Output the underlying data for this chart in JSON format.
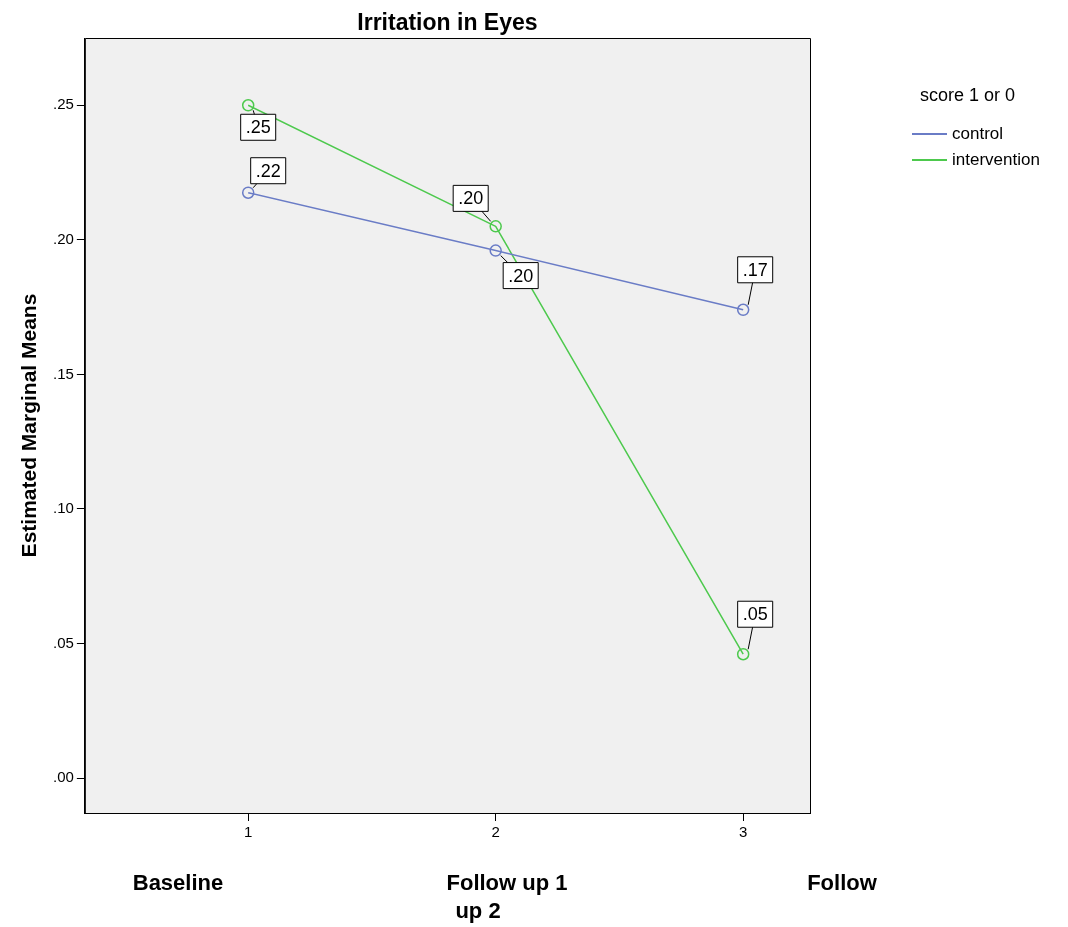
{
  "chart_data": {
    "type": "line",
    "title": "Irritation in Eyes",
    "ylabel": "Estimated Marginal Means",
    "legend_title": "score 1 or 0",
    "x": [
      1,
      2,
      3
    ],
    "xlim": [
      0.34,
      3.27
    ],
    "xticks": [
      1,
      2,
      3
    ],
    "ylim": [
      -0.013,
      0.275
    ],
    "yticks": [
      {
        "value": 0,
        "label": ".00"
      },
      {
        "value": 0.05,
        "label": ".05"
      },
      {
        "value": 0.1,
        "label": ".10"
      },
      {
        "value": 0.15,
        "label": ".15"
      },
      {
        "value": 0.2,
        "label": ".20"
      },
      {
        "value": 0.25,
        "label": ".25"
      }
    ],
    "series": [
      {
        "name": "control",
        "color": "#6a7cc6",
        "values": [
          0.2175,
          0.196,
          0.174
        ],
        "value_labels": [
          ".22",
          ".20",
          ".17"
        ]
      },
      {
        "name": "intervention",
        "color": "#4dc94d",
        "values": [
          0.25,
          0.205,
          0.046
        ],
        "value_labels": [
          ".25",
          ".20",
          ".05"
        ]
      }
    ],
    "annotations": [
      "Baseline",
      "Follow up 1",
      "up 2",
      "Follow"
    ],
    "marker": "circle",
    "line_style": "solid",
    "legend": "top right",
    "grid": false
  }
}
